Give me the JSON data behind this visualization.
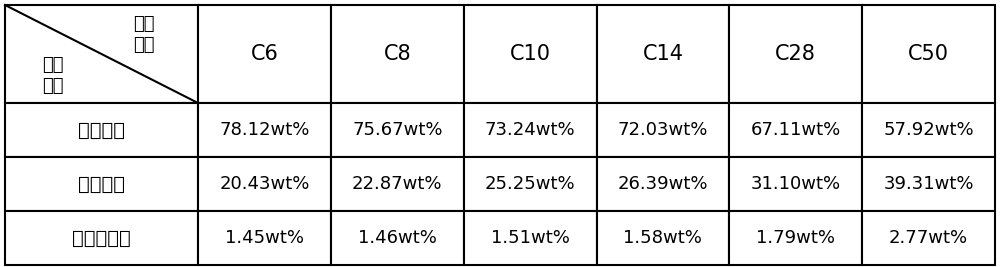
{
  "col_headers": [
    "C6",
    "C8",
    "C10",
    "C14",
    "C28",
    "C50"
  ],
  "row_headers": [
    "正构烷烂",
    "异构烷烂",
    "含氧化合物"
  ],
  "corner_top": "原料\n种类",
  "corner_bottom": "物质\n种类",
  "data": [
    [
      "78.12wt%",
      "75.67wt%",
      "73.24wt%",
      "72.03wt%",
      "67.11wt%",
      "57.92wt%"
    ],
    [
      "20.43wt%",
      "22.87wt%",
      "25.25wt%",
      "26.39wt%",
      "31.10wt%",
      "39.31wt%"
    ],
    [
      "1.45wt%",
      "1.46wt%",
      "1.51wt%",
      "1.58wt%",
      "1.79wt%",
      "2.77wt%"
    ]
  ],
  "background_color": "#ffffff",
  "border_color": "#000000",
  "text_color": "#000000"
}
